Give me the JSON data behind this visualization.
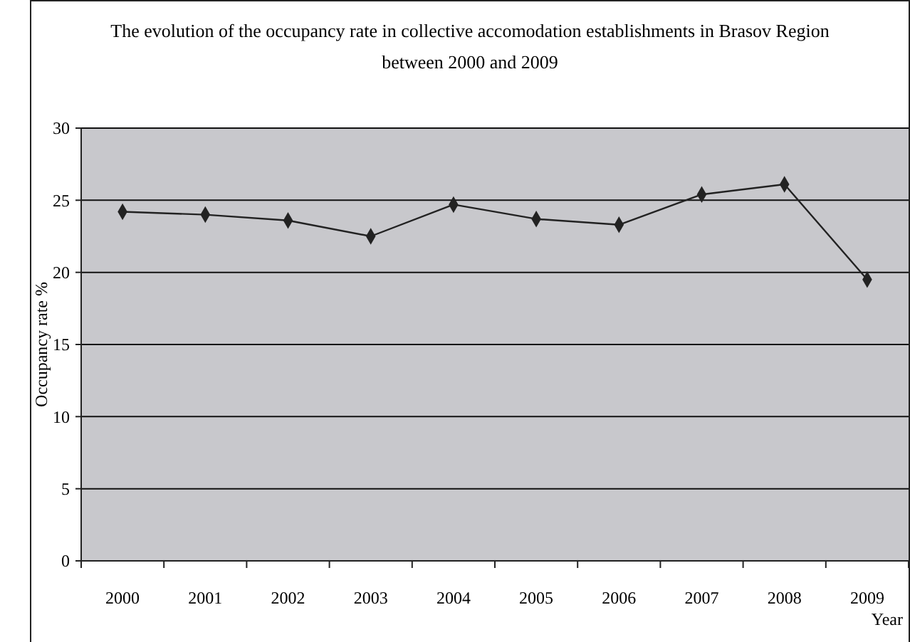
{
  "chart_data": {
    "type": "line",
    "title": "The evolution of the occupancy rate in collective accomodation establishments in Brasov Region\nbetween 2000 and 2009",
    "xlabel": "Year",
    "ylabel": "Occupancy rate %",
    "categories": [
      "2000",
      "2001",
      "2002",
      "2003",
      "2004",
      "2005",
      "2006",
      "2007",
      "2008",
      "2009"
    ],
    "series": [
      {
        "color": "#222222",
        "values": [
          24.2,
          24.0,
          23.6,
          22.5,
          24.7,
          23.7,
          23.3,
          25.4,
          26.1,
          19.5
        ]
      }
    ],
    "ylim": [
      0,
      30
    ],
    "yticks": [
      0,
      5,
      10,
      15,
      20,
      25,
      30
    ],
    "grid": "y",
    "marker": "diamond",
    "line_style": "solid"
  }
}
